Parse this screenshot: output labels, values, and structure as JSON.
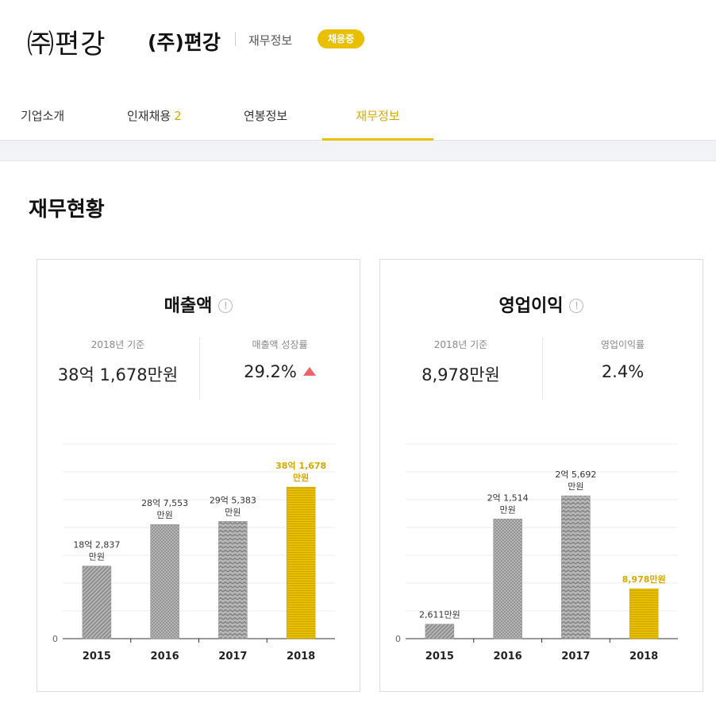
{
  "header": {
    "logo_text": "㈜편강",
    "company_name": "(주)편강",
    "section": "재무정보",
    "badge": "채용중"
  },
  "tabs": [
    {
      "label": "기업소개",
      "count": ""
    },
    {
      "label": "인재채용",
      "count": "2"
    },
    {
      "label": "연봉정보",
      "count": ""
    },
    {
      "label": "재무정보",
      "count": ""
    }
  ],
  "page_title": "재무현황",
  "colors": {
    "accent": "#e8c000",
    "gray_bar": "#a8a8a8",
    "up": "#f0636a"
  },
  "cards": [
    {
      "title": "매출액",
      "info_icon": "info-icon",
      "left_label": "2018년 기준",
      "left_value": "38억 1,678만원",
      "right_label": "매출액 성장률",
      "right_value": "29.2%",
      "trend": "up"
    },
    {
      "title": "영업이익",
      "info_icon": "info-icon",
      "left_label": "2018년 기준",
      "left_value": "8,978만원",
      "right_label": "영업이익률",
      "right_value": "2.4%",
      "trend": ""
    }
  ],
  "chart_data": [
    {
      "type": "bar",
      "title": "매출액",
      "categories": [
        "2015",
        "2016",
        "2017",
        "2018"
      ],
      "values": [
        182837,
        287553,
        295383,
        381678
      ],
      "unit": "만원",
      "labels": [
        [
          "18억 2,837",
          "만원"
        ],
        [
          "28억 7,553",
          "만원"
        ],
        [
          "29억 5,383",
          "만원"
        ],
        [
          "38억 1,678",
          "만원"
        ]
      ],
      "highlight_index": 3,
      "ytick_label": "0",
      "ylim": [
        0,
        490000
      ],
      "grid": true
    },
    {
      "type": "bar",
      "title": "영업이익",
      "categories": [
        "2015",
        "2016",
        "2017",
        "2018"
      ],
      "values": [
        2611,
        21514,
        25692,
        8978
      ],
      "unit": "만원",
      "labels": [
        [
          "2,611만원"
        ],
        [
          "2억 1,514",
          "만원"
        ],
        [
          "2억 5,692",
          "만원"
        ],
        [
          "8,978만원"
        ]
      ],
      "highlight_index": 3,
      "ytick_label": "0",
      "ylim": [
        0,
        35000
      ],
      "grid": true
    }
  ]
}
